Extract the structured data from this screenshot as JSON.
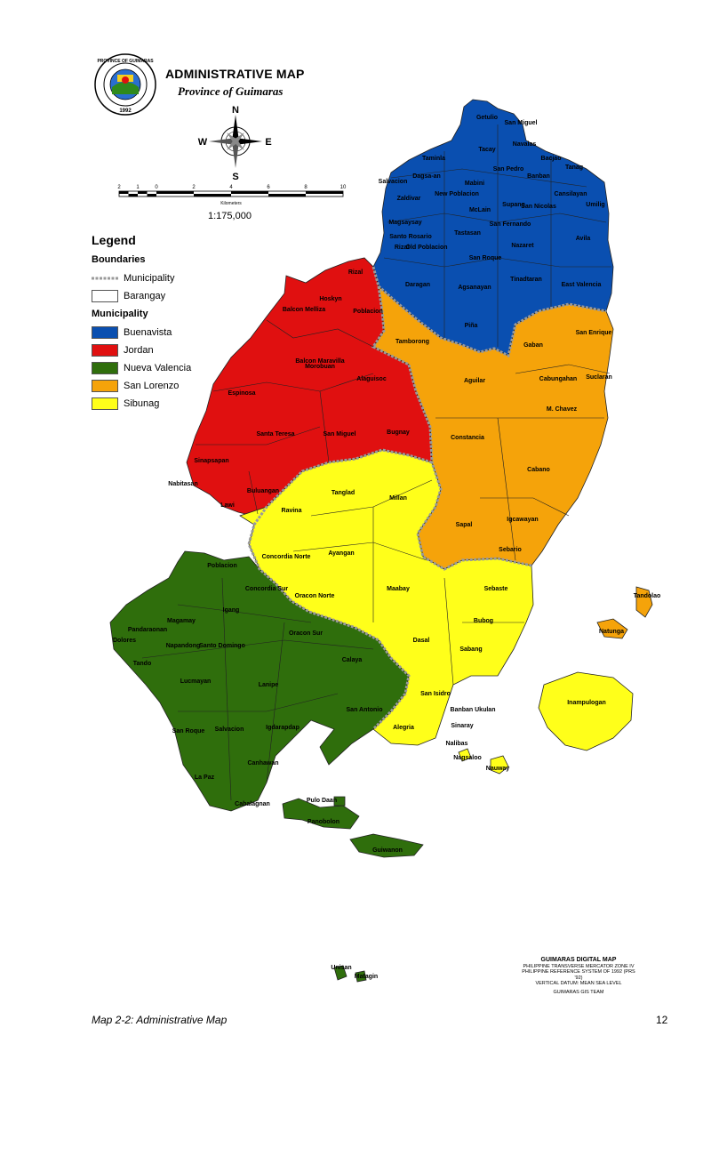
{
  "header": {
    "title": "ADMINISTRATIVE MAP",
    "subtitle": "Province of Guimaras",
    "seal_top_text": "PROVINCE OF GUIMARAS",
    "seal_year": "1992"
  },
  "compass": {
    "n": "N",
    "s": "S",
    "e": "E",
    "w": "W"
  },
  "scale": {
    "ticks": [
      "2",
      "1",
      "0",
      "2",
      "4",
      "6",
      "8",
      "10"
    ],
    "unit": "Kilometers",
    "ratio": "1:175,000"
  },
  "legend": {
    "title": "Legend",
    "boundaries_heading": "Boundaries",
    "boundary_items": [
      {
        "label": "Municipality"
      },
      {
        "label": "Barangay"
      }
    ],
    "municipality_heading": "Municipality",
    "municipality_items": [
      {
        "label": "Buenavista",
        "color": "#0a4fb0"
      },
      {
        "label": "Jordan",
        "color": "#e01010"
      },
      {
        "label": "Nueva Valencia",
        "color": "#2f6e0c"
      },
      {
        "label": "San Lorenzo",
        "color": "#f5a30a"
      },
      {
        "label": "Sibunag",
        "color": "#ffff1a"
      }
    ]
  },
  "colors": {
    "buenavista": "#0a4fb0",
    "jordan": "#e01010",
    "nueva_valencia": "#2f6e0c",
    "san_lorenzo": "#f5a30a",
    "sibunag": "#ffff1a",
    "boundary": "#9a9a9a"
  },
  "barangays": {
    "buenavista": [
      "Getulio",
      "San Miguel",
      "Navalas",
      "Tacay",
      "Taminla",
      "Bacjao",
      "Dagsa-an",
      "San Pedro",
      "Banban",
      "Tanag",
      "Mabini",
      "Salvacion",
      "New Poblacion",
      "Zaldivar",
      "McLain",
      "Supang",
      "San Nicolas",
      "Cansilayan",
      "Umilig",
      "Magsaysay",
      "Santo Rosario",
      "Rizal",
      "Old Poblacion",
      "Tastasan",
      "San Fernando",
      "Nazaret",
      "Avila",
      "San Roque",
      "Daragan",
      "Agsanayan",
      "Tinadtaran",
      "East Valencia",
      "Piña"
    ],
    "jordan": [
      "Rizal",
      "Morobuan",
      "Hoskyn",
      "Balcon Melliza",
      "Poblacion",
      "Balcon Maravilla",
      "Alaguisoc",
      "Espinosa",
      "Santa Teresa",
      "San Miguel",
      "Bugnay",
      "Sinapsapan",
      "Buluangan",
      "Lawi",
      "Nabitasan"
    ],
    "san_lorenzo": [
      "Tamborong",
      "Gaban",
      "San Enrique",
      "Cabungahan",
      "Suclaran",
      "Aguilar",
      "M. Chavez",
      "Constancia",
      "Cabano",
      "Igcawayan",
      "Sapal",
      "Sebario",
      "Natunga",
      "Tandolao"
    ],
    "sibunag": [
      "Tanglad",
      "Millan",
      "Ravina",
      "Concordia Norte",
      "Ayangan",
      "Maabay",
      "Sebaste",
      "Oracon Norte",
      "Bubog",
      "Dasal",
      "Sabang",
      "San Isidro",
      "Alegria",
      "Inampulogan",
      "Banban Ukulan",
      "Sinaray",
      "Nalibas",
      "Nagsaloo",
      "Nauway"
    ],
    "nueva_valencia": [
      "Poblacion",
      "Concordia Sur",
      "Igang",
      "Magamay",
      "Pandaraonan",
      "Dolores",
      "Napandong",
      "Santo Domingo",
      "Oracon Sur",
      "Calaya",
      "Tando",
      "Lucmayan",
      "Lanipe",
      "San Antonio",
      "San Roque",
      "Salvacion",
      "Igdarapdap",
      "Canhawan",
      "La Paz",
      "Cabalagnan",
      "Pulo Daan",
      "Panobolon",
      "Guiwanon",
      "Unisan",
      "Matagin"
    ]
  },
  "footer": {
    "title": "GUIMARAS DIGITAL MAP",
    "line1": "PHILIPPINE TRANSVERSE MERCATOR ZONE IV",
    "line2": "PHILIPPINE REFERENCE SYSTEM OF 1992 (PRS '92)",
    "line3": "VERTICAL DATUM:  MEAN SEA LEVEL",
    "credit": "GUIMARAS GIS TEAM"
  },
  "caption": "Map 2-2:  Administrative Map",
  "page_number": "12"
}
